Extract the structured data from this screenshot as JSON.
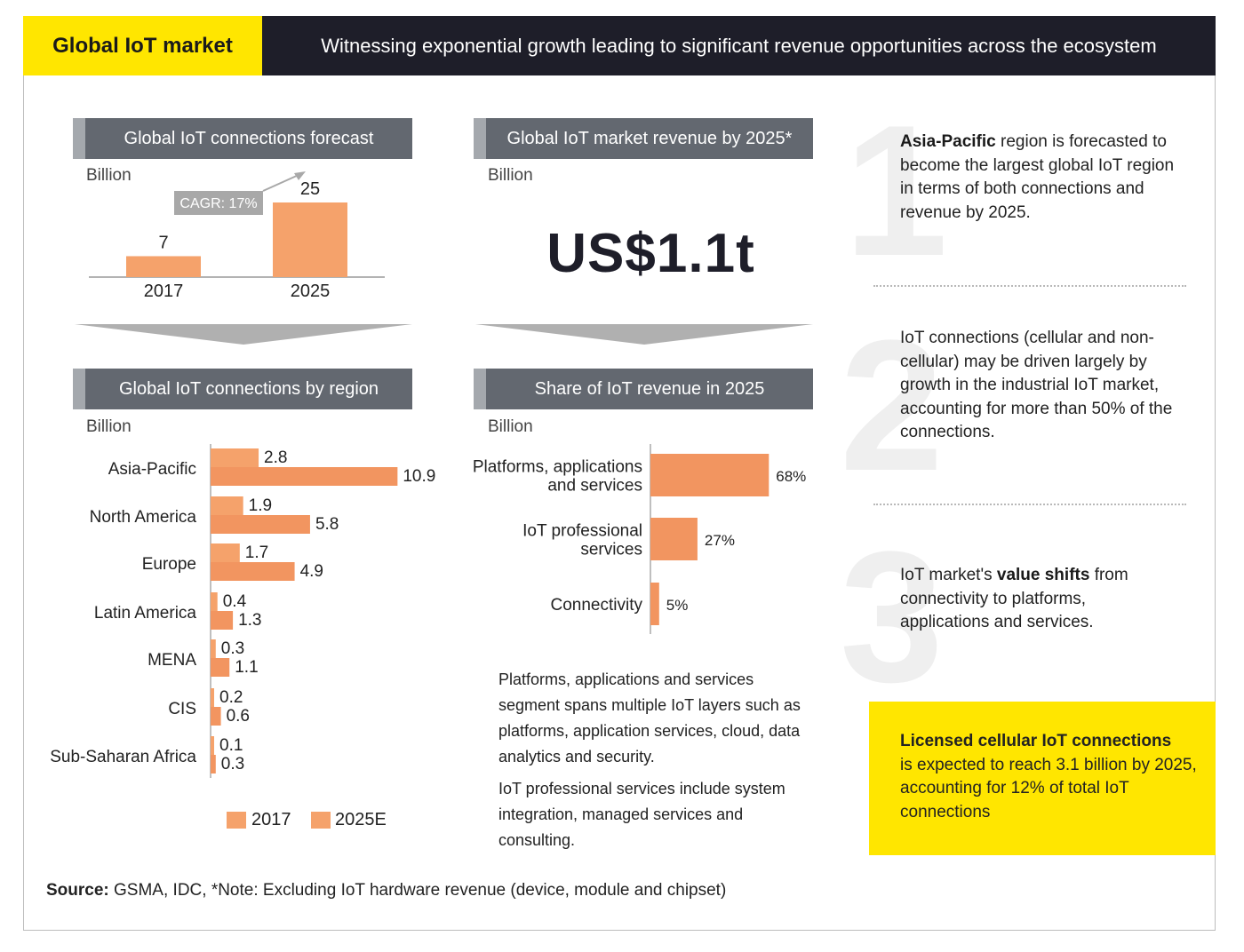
{
  "header": {
    "title": "Global IoT market",
    "subtitle": "Witnessing exponential growth leading to significant revenue opportunities across the ecosystem"
  },
  "colors": {
    "accent_yellow": "#ffe600",
    "dark": "#1e1e29",
    "panel_gray": "#636870",
    "bar_orange": "#f5a26b",
    "bar_orange_dark": "#f29560"
  },
  "chart_data": [
    {
      "type": "bar",
      "title": "Global IoT connections forecast",
      "ylabel": "Billion",
      "categories": [
        "2017",
        "2025"
      ],
      "values": [
        7,
        25
      ],
      "value_labels": [
        "7",
        "25"
      ],
      "annotation": "CAGR: 17%"
    },
    {
      "type": "bar",
      "title": "Global IoT connections by region",
      "ylabel": "Billion",
      "orientation": "horizontal",
      "categories": [
        "Asia-Pacific",
        "North America",
        "Europe",
        "Latin America",
        "MENA",
        "CIS",
        "Sub-Saharan Africa"
      ],
      "series": [
        {
          "name": "2017",
          "values": [
            2.8,
            1.9,
            1.7,
            0.4,
            0.3,
            0.2,
            0.1
          ],
          "labels": [
            "2.8",
            "1.9",
            "1.7",
            "0.4",
            "0.3",
            "0.2",
            "0.1"
          ]
        },
        {
          "name": "2025E",
          "values": [
            10.9,
            5.8,
            4.9,
            1.3,
            1.1,
            0.6,
            0.3
          ],
          "labels": [
            "10.9",
            "5.8",
            "4.9",
            "1.3",
            "1.1",
            "0.6",
            "0.3"
          ]
        }
      ],
      "legend": "bottom"
    },
    {
      "type": "bar",
      "title": "Share of IoT revenue in 2025",
      "ylabel": "Billion",
      "orientation": "horizontal",
      "categories": [
        [
          "Platforms, applications",
          "and services"
        ],
        [
          "IoT professional",
          "services"
        ],
        [
          "Connectivity"
        ]
      ],
      "values": [
        68,
        27,
        5
      ],
      "value_labels": [
        "68%",
        "27%",
        "5%"
      ]
    }
  ],
  "revenue": {
    "title": "Global IoT market revenue by 2025*",
    "unit": "Billion",
    "value": "US$1.1t"
  },
  "notes": {
    "p1": "Platforms, applications and services segment spans multiple IoT layers such as platforms, application services, cloud, data analytics and security.",
    "p2": "IoT professional services include system integration, managed services and consulting."
  },
  "insights": [
    {
      "numeral": "1",
      "bold": "Asia-Pacific",
      "text": " region is forecasted to become the largest global IoT region in terms of both connections and revenue by 2025."
    },
    {
      "numeral": "2",
      "text": "IoT connections (cellular and non-cellular) may be driven largely by growth in the industrial IoT market, accounting for more than 50% of the connections."
    },
    {
      "numeral": "3",
      "pre": "IoT market's ",
      "bold": "value shifts",
      "text": " from connectivity to platforms, applications and services."
    }
  ],
  "callout": {
    "bold": "Licensed cellular IoT connections",
    "text": "is expected to reach 3.1 billion by 2025, accounting for 12% of total IoT connections"
  },
  "source": {
    "label": "Source:",
    "text": " GSMA, IDC, *Note: Excluding IoT hardware revenue (device, module and chipset)"
  }
}
